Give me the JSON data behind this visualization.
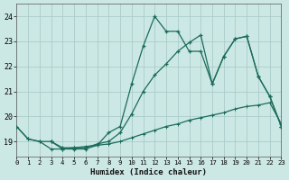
{
  "xlabel": "Humidex (Indice chaleur)",
  "bg_color": "#cce8e4",
  "grid_color": "#aaccca",
  "line_color": "#1a6b5a",
  "x_ticks": [
    0,
    1,
    2,
    3,
    4,
    5,
    6,
    7,
    8,
    9,
    10,
    11,
    12,
    13,
    14,
    15,
    16,
    17,
    18,
    19,
    20,
    21,
    22,
    23
  ],
  "y_ticks": [
    19,
    20,
    21,
    22,
    23,
    24
  ],
  "xlim": [
    0,
    23
  ],
  "ylim": [
    18.4,
    24.5
  ],
  "series1_x": [
    0,
    1,
    2,
    3,
    4,
    5,
    6,
    7,
    8,
    9,
    10,
    11,
    12,
    13,
    14,
    15,
    16,
    17,
    18,
    19,
    20,
    21,
    22,
    23
  ],
  "series1_y": [
    19.6,
    19.1,
    19.0,
    19.0,
    18.7,
    18.7,
    18.7,
    18.85,
    19.35,
    19.6,
    21.3,
    22.8,
    24.0,
    23.4,
    23.4,
    22.6,
    22.6,
    21.3,
    22.4,
    23.1,
    23.2,
    21.6,
    20.8,
    19.6
  ],
  "series2_x": [
    3,
    4,
    5,
    6,
    7,
    8,
    9,
    10,
    11,
    12,
    13,
    14,
    15,
    16,
    17,
    18,
    19,
    20,
    21,
    22,
    23
  ],
  "series2_y": [
    19.0,
    18.75,
    18.75,
    18.75,
    18.9,
    19.0,
    19.35,
    20.1,
    21.0,
    21.65,
    22.1,
    22.6,
    22.95,
    23.25,
    21.3,
    22.4,
    23.1,
    23.2,
    21.6,
    20.8,
    19.6
  ],
  "series3_x": [
    0,
    1,
    2,
    3,
    4,
    5,
    6,
    7,
    8,
    9,
    10,
    11,
    12,
    13,
    14,
    15,
    16,
    17,
    18,
    19,
    20,
    21,
    22,
    23
  ],
  "series3_y": [
    19.6,
    19.1,
    19.0,
    18.7,
    18.7,
    18.75,
    18.8,
    18.85,
    18.9,
    19.0,
    19.15,
    19.3,
    19.45,
    19.6,
    19.7,
    19.85,
    19.95,
    20.05,
    20.15,
    20.3,
    20.4,
    20.45,
    20.55,
    19.7
  ]
}
